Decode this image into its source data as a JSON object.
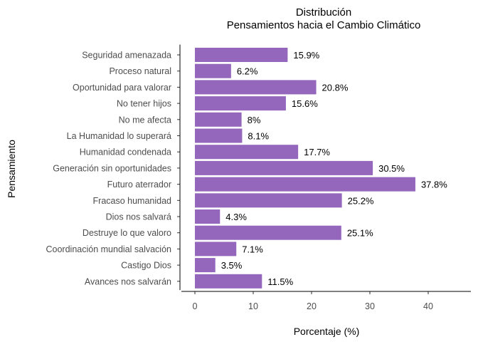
{
  "chart_data": {
    "type": "bar",
    "orientation": "horizontal",
    "title_line1": "Distribución",
    "title_line2": "Pensamientos hacia el Cambio Climático",
    "xlabel": "Porcentaje (%)",
    "ylabel": "Pensamiento",
    "categories": [
      "Seguridad amenazada",
      "Proceso natural",
      "Oportunidad para valorar",
      "No tener hijos",
      "No me afecta",
      "La Humanidad lo superará",
      "Humanidad condenada",
      "Generación sin oportunidades",
      "Futuro aterrador",
      "Fracaso humanidad",
      "Dios nos salvará",
      "Destruye lo que valoro",
      "Coordinación mundial salvación",
      "Castigo Dios",
      "Avances nos salvarán"
    ],
    "values": [
      15.9,
      6.2,
      20.8,
      15.6,
      8,
      8.1,
      17.7,
      30.5,
      37.8,
      25.2,
      4.3,
      25.1,
      7.1,
      3.5,
      11.5
    ],
    "value_labels": [
      "15.9%",
      "6.2%",
      "20.8%",
      "15.6%",
      "8%",
      "8.1%",
      "17.7%",
      "30.5%",
      "37.8%",
      "25.2%",
      "4.3%",
      "25.1%",
      "7.1%",
      "3.5%",
      "11.5%"
    ],
    "xticks": [
      0,
      10,
      20,
      30,
      40
    ],
    "xlim": [
      0,
      47
    ],
    "grid": false,
    "bar_color": "#9467bd"
  }
}
